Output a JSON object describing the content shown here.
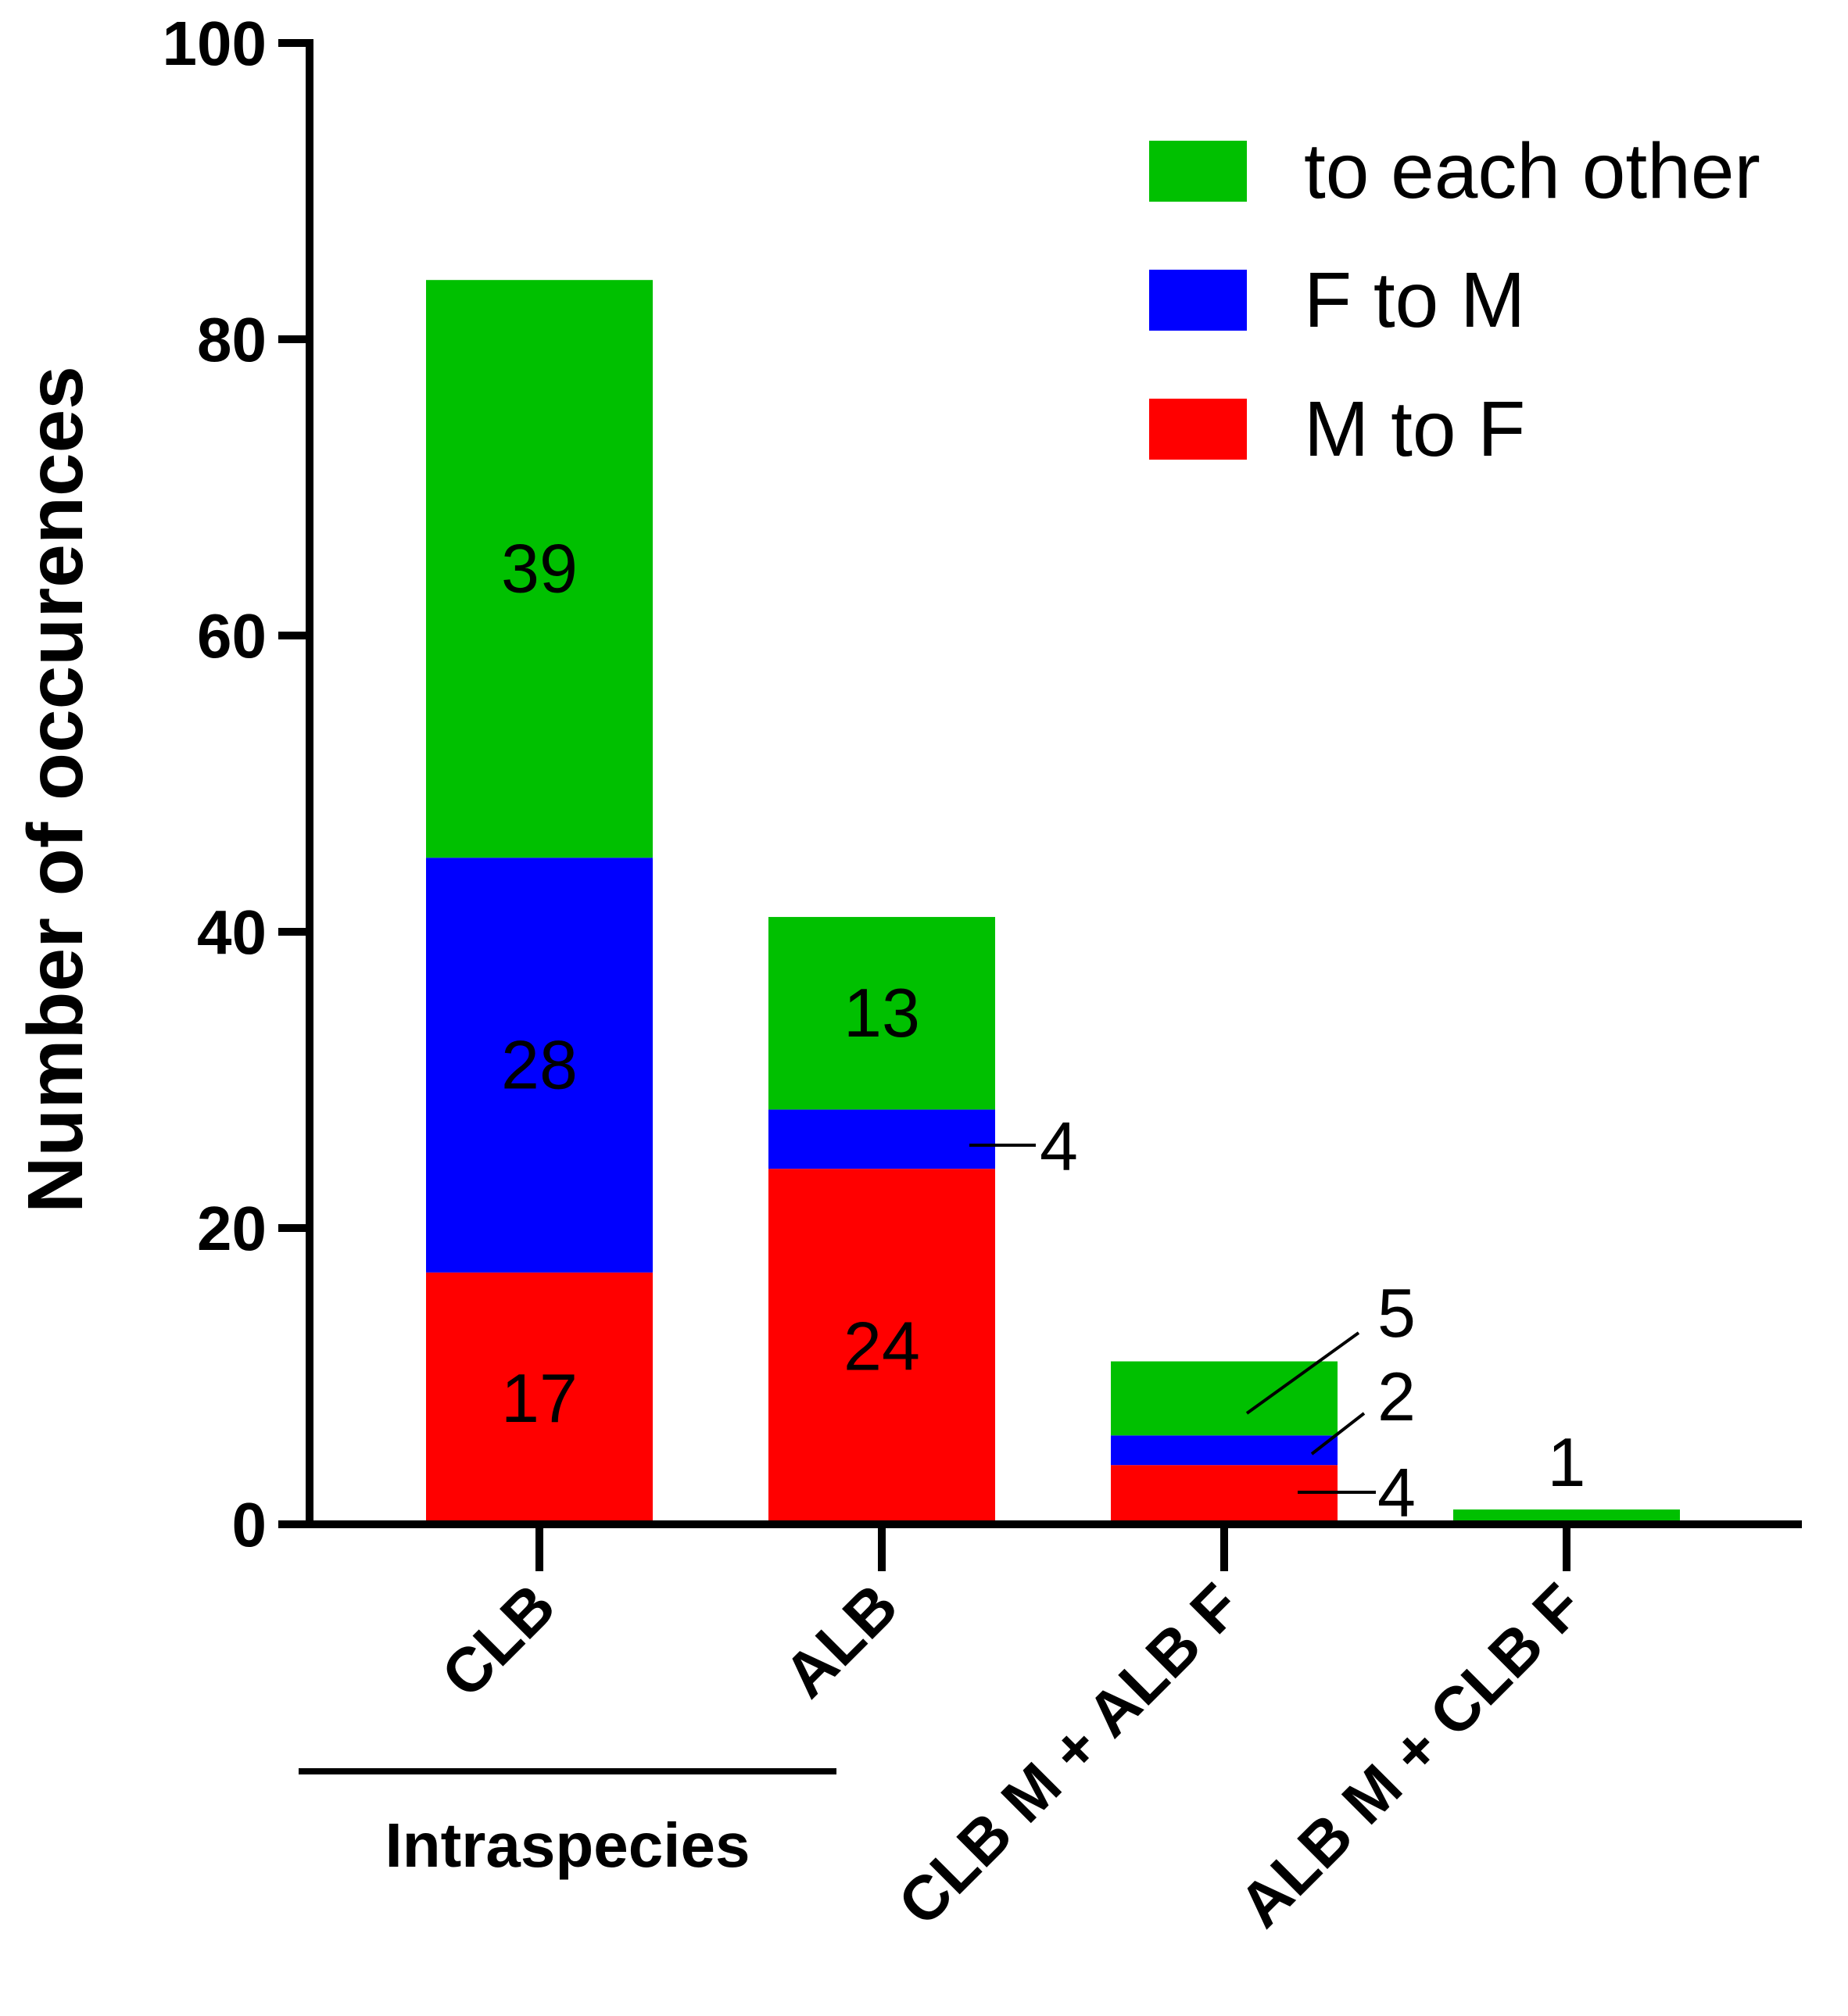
{
  "chart_data": {
    "type": "bar",
    "stacked": true,
    "ylabel": "Number of occurences",
    "xlabel": "",
    "ylim": [
      0,
      100
    ],
    "yticks": [
      "0",
      "20",
      "40",
      "60",
      "80",
      "100"
    ],
    "categories": [
      "CLB",
      "ALB",
      "CLB M + ALB F",
      "ALB M + CLB F"
    ],
    "series": [
      {
        "name": "M to F",
        "color": "#ff0000",
        "values": [
          17,
          24,
          4,
          0
        ]
      },
      {
        "name": "F to M",
        "color": "#0000ff",
        "values": [
          28,
          4,
          2,
          0
        ]
      },
      {
        "name": "to each other",
        "color": "#00c000",
        "values": [
          39,
          13,
          5,
          1
        ]
      }
    ],
    "data_labels": [
      {
        "category": 0,
        "series": 0,
        "text": "17"
      },
      {
        "category": 0,
        "series": 1,
        "text": "28"
      },
      {
        "category": 0,
        "series": 2,
        "text": "39"
      },
      {
        "category": 1,
        "series": 0,
        "text": "24"
      },
      {
        "category": 1,
        "series": 1,
        "text": "4"
      },
      {
        "category": 1,
        "series": 2,
        "text": "13"
      },
      {
        "category": 2,
        "series": 0,
        "text": "4"
      },
      {
        "category": 2,
        "series": 1,
        "text": "2"
      },
      {
        "category": 2,
        "series": 2,
        "text": "5"
      },
      {
        "category": 3,
        "series": 2,
        "text": "1"
      }
    ],
    "legend": {
      "position": "top-right",
      "order": [
        "to each other",
        "F to M",
        "M to F"
      ]
    },
    "group_annotation": {
      "text": "Intraspecies",
      "categories": [
        0,
        1
      ]
    }
  }
}
